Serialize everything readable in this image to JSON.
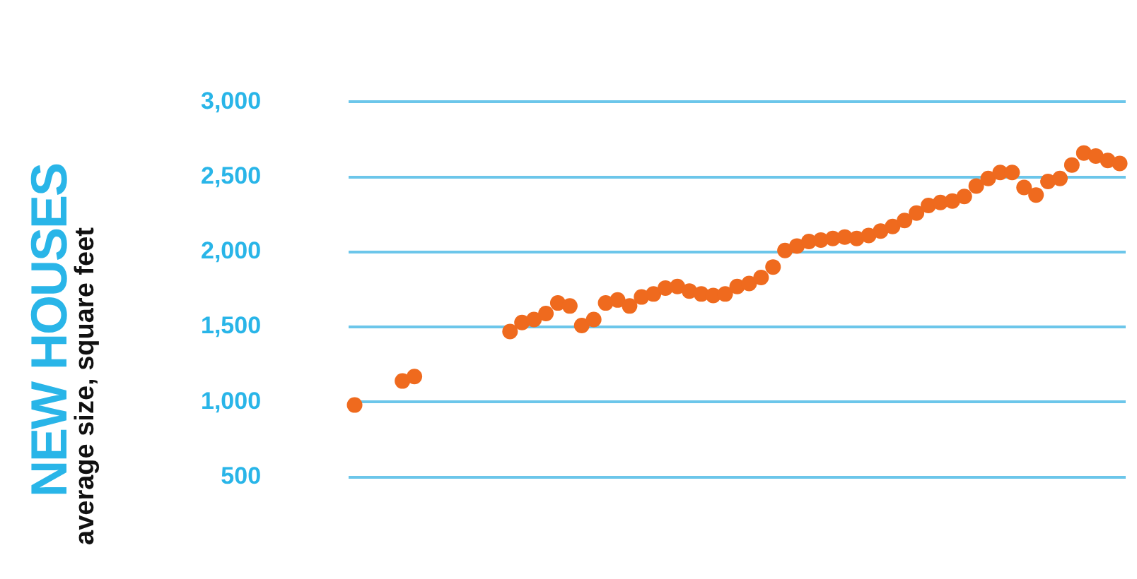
{
  "chart_data": {
    "type": "scatter",
    "title": "NEW HOUSES",
    "ylabel": "average size, square feet",
    "categories": [
      null,
      null,
      null,
      null,
      null,
      null,
      null,
      null,
      null,
      null,
      null,
      null,
      null,
      null,
      null,
      null,
      null,
      null,
      null,
      null,
      null,
      null,
      null,
      null,
      null,
      null,
      null,
      null,
      null,
      null,
      null,
      null,
      null,
      null,
      null,
      null,
      null,
      null,
      null,
      null,
      null,
      null,
      null,
      null,
      null,
      null,
      null,
      null,
      null,
      null,
      null,
      null,
      null,
      null,
      null,
      null,
      null,
      null,
      null,
      null,
      null,
      null,
      null,
      null,
      null
    ],
    "values": [
      980,
      null,
      null,
      null,
      1140,
      1170,
      null,
      null,
      null,
      null,
      null,
      null,
      null,
      1470,
      1530,
      1550,
      1590,
      1660,
      1640,
      1510,
      1550,
      1660,
      1680,
      1640,
      1700,
      1720,
      1760,
      1770,
      1740,
      1720,
      1710,
      1720,
      1770,
      1790,
      1830,
      1900,
      2010,
      2040,
      2070,
      2080,
      2090,
      2100,
      2090,
      2110,
      2140,
      2170,
      2210,
      2260,
      2310,
      2330,
      2340,
      2370,
      2440,
      2490,
      2530,
      2530,
      2430,
      2380,
      2470,
      2490,
      2580,
      2660,
      2640,
      2610,
      2590
    ],
    "color": "#ef6a1e",
    "marker": "circle",
    "grid": "y",
    "ylim": [
      500,
      3000
    ],
    "yticks": [
      {
        "value": 500,
        "label": "500"
      },
      {
        "value": 1000,
        "label": "1,000"
      },
      {
        "value": 1500,
        "label": "1,500"
      },
      {
        "value": 2000,
        "label": "2,000"
      },
      {
        "value": 2500,
        "label": "2,500"
      },
      {
        "value": 3000,
        "label": "3,000"
      }
    ]
  }
}
